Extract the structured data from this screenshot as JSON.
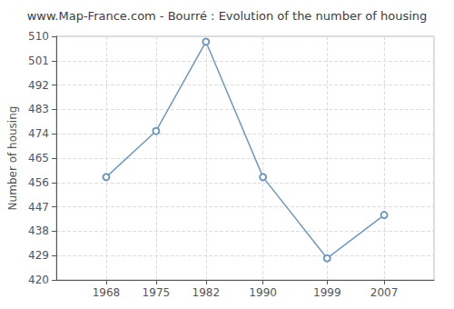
{
  "chart_data": {
    "type": "line",
    "title": "www.Map-France.com - Bourré : Evolution of the number of housing",
    "ylabel": "Number of housing",
    "x": [
      1968,
      1975,
      1982,
      1990,
      1999,
      2007
    ],
    "values": [
      458,
      475,
      508,
      458,
      428,
      444
    ],
    "color": "#7099bb",
    "marker": "circle",
    "xlim": [
      1961,
      2014
    ],
    "xticks": [
      1968,
      1975,
      1982,
      1990,
      1999,
      2007
    ],
    "ylim": [
      420,
      510
    ],
    "yticks": [
      420,
      429,
      438,
      447,
      456,
      465,
      474,
      483,
      492,
      501,
      510
    ],
    "grid": true
  }
}
